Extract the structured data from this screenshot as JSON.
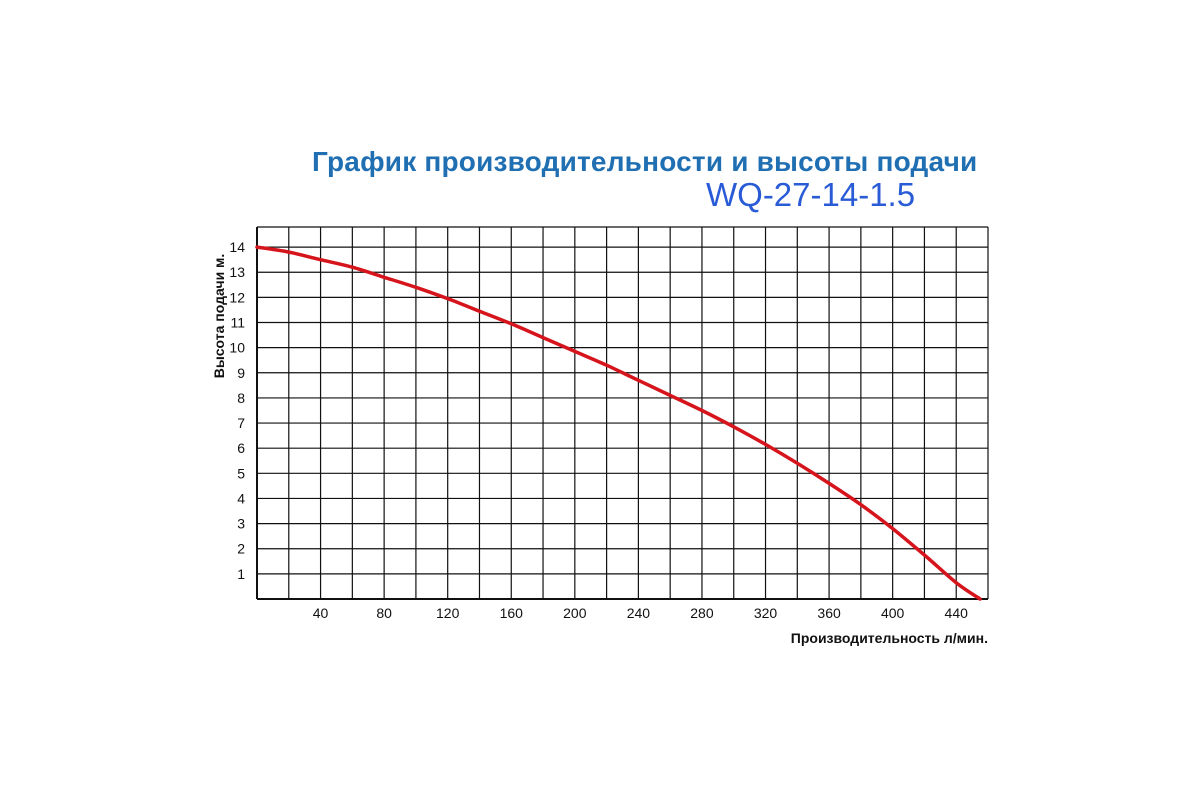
{
  "header": {
    "title": "График производительности и высоты подачи",
    "model": "WQ-27-14-1.5"
  },
  "chart_data": {
    "type": "line",
    "title": "График производительности и высоты подачи",
    "subtitle": "WQ-27-14-1.5",
    "xlabel": "Производительность л/мин.",
    "ylabel": "Высота подачи м.",
    "xlim": [
      0,
      460
    ],
    "ylim": [
      0,
      14.8
    ],
    "grid": true,
    "x_ticks": [
      40,
      80,
      120,
      160,
      200,
      240,
      280,
      320,
      360,
      400,
      440
    ],
    "y_ticks": [
      1,
      2,
      3,
      4,
      5,
      6,
      7,
      8,
      9,
      10,
      11,
      12,
      13,
      14
    ],
    "series": [
      {
        "color": "#d6141c",
        "x": [
          0,
          20,
          40,
          60,
          80,
          100,
          120,
          140,
          160,
          180,
          200,
          220,
          240,
          260,
          280,
          300,
          320,
          340,
          360,
          380,
          400,
          420,
          440,
          455
        ],
        "y": [
          14.0,
          13.8,
          13.5,
          13.2,
          12.8,
          12.4,
          11.95,
          11.45,
          10.95,
          10.4,
          9.85,
          9.3,
          8.7,
          8.1,
          7.5,
          6.85,
          6.15,
          5.4,
          4.6,
          3.75,
          2.8,
          1.75,
          0.65,
          0.0
        ]
      }
    ]
  }
}
